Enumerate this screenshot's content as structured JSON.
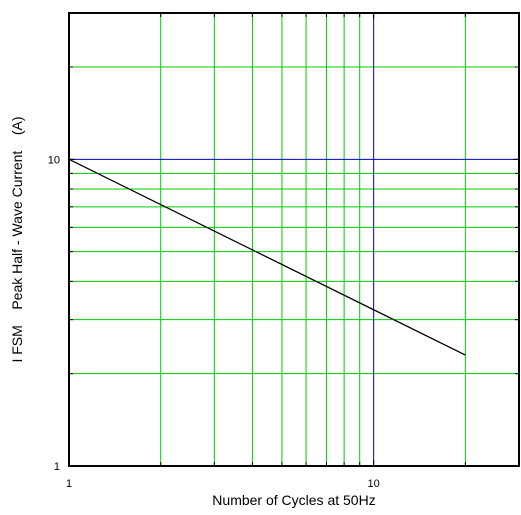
{
  "chart_data": {
    "type": "line",
    "title": "",
    "xlabel": "Number of Cycles at 50Hz",
    "ylabel": "I FSM    Peak Half - Wave Current    (A)",
    "x_scale": "log",
    "y_scale": "log",
    "xlim": [
      1,
      30
    ],
    "ylim": [
      1,
      30
    ],
    "x_tick_labels": [
      {
        "value": 1,
        "label": "1"
      },
      {
        "value": 10,
        "label": "10"
      }
    ],
    "y_tick_labels": [
      {
        "value": 1,
        "label": "1"
      },
      {
        "value": 10,
        "label": "10"
      }
    ],
    "grid": true,
    "grid_color": "#00cc00",
    "decade_line_color": "#0000cc",
    "minor_grid_x": [
      2,
      3,
      4,
      5,
      6,
      7,
      8,
      9,
      20
    ],
    "minor_grid_y": [
      2,
      3,
      4,
      5,
      6,
      7,
      8,
      9,
      20
    ],
    "series": [
      {
        "color": "#000000",
        "x": [
          1,
          20
        ],
        "y": [
          10,
          2.3
        ]
      }
    ]
  }
}
